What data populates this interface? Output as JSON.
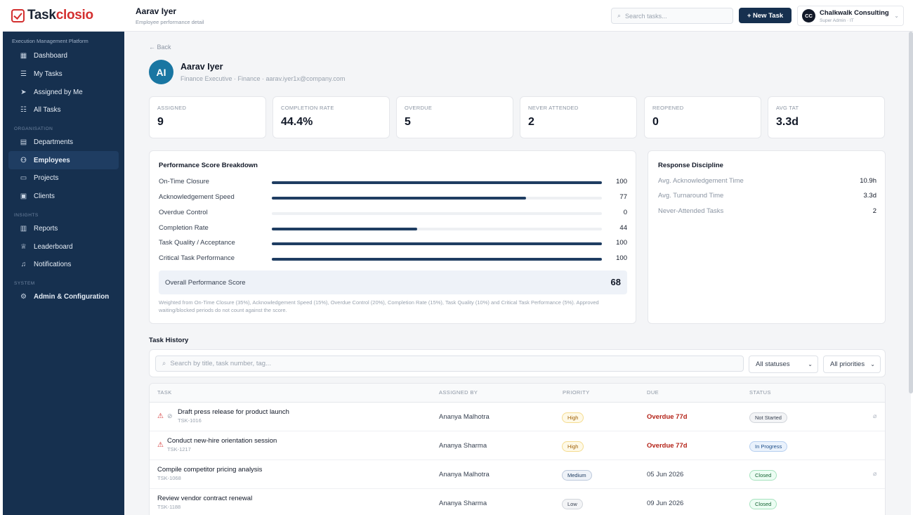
{
  "brand": {
    "name_dark": "Task",
    "name_accent": "closio"
  },
  "sidebar": {
    "caption": "Execution Management Platform",
    "sections": {
      "organisation": "ORGANISATION",
      "insights": "INSIGHTS",
      "system": "SYSTEM"
    },
    "items": [
      {
        "label": "Dashboard",
        "icon": "grid-icon"
      },
      {
        "label": "My Tasks",
        "icon": "list-icon"
      },
      {
        "label": "Assigned by Me",
        "icon": "send-icon"
      },
      {
        "label": "All Tasks",
        "icon": "list-check-icon"
      },
      {
        "label": "Departments",
        "icon": "building-icon"
      },
      {
        "label": "Employees",
        "icon": "users-icon",
        "active": true
      },
      {
        "label": "Projects",
        "icon": "folder-icon"
      },
      {
        "label": "Clients",
        "icon": "briefcase-icon"
      },
      {
        "label": "Reports",
        "icon": "bar-chart-icon"
      },
      {
        "label": "Leaderboard",
        "icon": "trophy-icon"
      },
      {
        "label": "Notifications",
        "icon": "bell-icon"
      },
      {
        "label": "Admin & Configuration",
        "icon": "gear-icon"
      }
    ]
  },
  "header": {
    "title": "Aarav Iyer",
    "subtitle": "Employee performance detail",
    "search_placeholder": "Search tasks...",
    "new_task_label": "+ New Task",
    "org": {
      "initials": "CC",
      "name": "Chalkwalk Consulting",
      "role": "Super Admin · IT"
    }
  },
  "employee": {
    "back_label": "← Back",
    "initials": "AI",
    "name": "Aarav Iyer",
    "meta": "Finance Executive · Finance · aarav.iyer1x@company.com"
  },
  "kpis": [
    {
      "label": "ASSIGNED",
      "value": "9"
    },
    {
      "label": "COMPLETION RATE",
      "value": "44.4%"
    },
    {
      "label": "OVERDUE",
      "value": "5"
    },
    {
      "label": "NEVER ATTENDED",
      "value": "2"
    },
    {
      "label": "REOPENED",
      "value": "0"
    },
    {
      "label": "AVG TAT",
      "value": "3.3d"
    }
  ],
  "performance": {
    "title": "Performance Score Breakdown",
    "metrics": [
      {
        "label": "On-Time Closure",
        "value": 100
      },
      {
        "label": "Acknowledgement Speed",
        "value": 77
      },
      {
        "label": "Overdue Control",
        "value": 0
      },
      {
        "label": "Completion Rate",
        "value": 44
      },
      {
        "label": "Task Quality / Acceptance",
        "value": 100
      },
      {
        "label": "Critical Task Performance",
        "value": 100
      }
    ],
    "overall_label": "Overall Performance Score",
    "overall_value": "68",
    "note": "Weighted from On-Time Closure (35%), Acknowledgement Speed (15%), Overdue Control (20%), Completion Rate (15%), Task Quality (10%) and Critical Task Performance (5%). Approved waiting/blocked periods do not count against the score."
  },
  "response": {
    "title": "Response Discipline",
    "rows": [
      {
        "label": "Avg. Acknowledgement Time",
        "value": "10.9h"
      },
      {
        "label": "Avg. Turnaround Time",
        "value": "3.3d"
      },
      {
        "label": "Never-Attended Tasks",
        "value": "2"
      }
    ]
  },
  "task_history": {
    "title": "Task History",
    "search_placeholder": "Search by title, task number, tag...",
    "status_filter": "All statuses",
    "priority_filter": "All priorities",
    "columns": {
      "task": "TASK",
      "assigned_by": "ASSIGNED BY",
      "priority": "PRIORITY",
      "due": "DUE",
      "status": "STATUS"
    },
    "rows": [
      {
        "title": "Draft press release for product launch",
        "id": "TSK-1016",
        "assigned_by": "Ananya Malhotra",
        "priority": "High",
        "due": "Overdue 77d",
        "status": "Not Started"
      },
      {
        "title": "Conduct new-hire orientation session",
        "id": "TSK-1217",
        "assigned_by": "Ananya Sharma",
        "priority": "High",
        "due": "Overdue 77d",
        "status": "In Progress"
      },
      {
        "title": "Compile competitor pricing analysis",
        "id": "TSK-1068",
        "assigned_by": "Ananya Malhotra",
        "priority": "Medium",
        "due": "05 Jun 2026",
        "status": "Closed"
      },
      {
        "title": "Review vendor contract renewal",
        "id": "TSK-1188",
        "assigned_by": "Ananya Sharma",
        "priority": "Low",
        "due": "09 Jun 2026",
        "status": "Closed"
      }
    ]
  }
}
